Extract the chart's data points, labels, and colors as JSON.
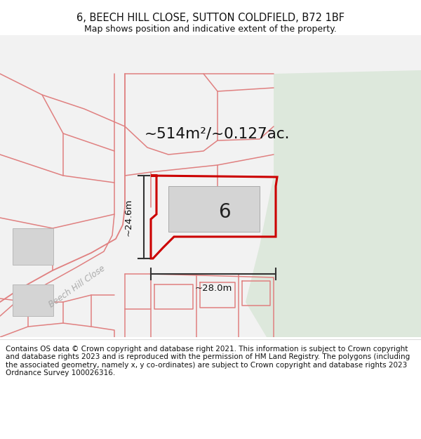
{
  "title": "6, BEECH HILL CLOSE, SUTTON COLDFIELD, B72 1BF",
  "subtitle": "Map shows position and indicative extent of the property.",
  "footer": "Contains OS data © Crown copyright and database right 2021. This information is subject to Crown copyright and database rights 2023 and is reproduced with the permission of HM Land Registry. The polygons (including the associated geometry, namely x, y co-ordinates) are subject to Crown copyright and database rights 2023 Ordnance Survey 100026316.",
  "area_text": "~514m²/~0.127ac.",
  "label_number": "6",
  "dim_width": "~28.0m",
  "dim_height": "~24.6m",
  "road_label": "Beech Hill Close",
  "bg_map_color": "#f2f2f2",
  "bg_green_color": "#dde8dc",
  "main_plot_color": "#cc0000",
  "map_line_color": "#e08080",
  "building_fill": "#d4d4d4",
  "building_stroke": "#b8b8b8",
  "dim_line_color": "#333333",
  "fig_width": 6.0,
  "fig_height": 6.25,
  "dpi": 100,
  "title_fontsize": 10.5,
  "subtitle_fontsize": 9,
  "footer_fontsize": 7.5,
  "map_lw": 1.1,
  "plot_lw": 2.2
}
